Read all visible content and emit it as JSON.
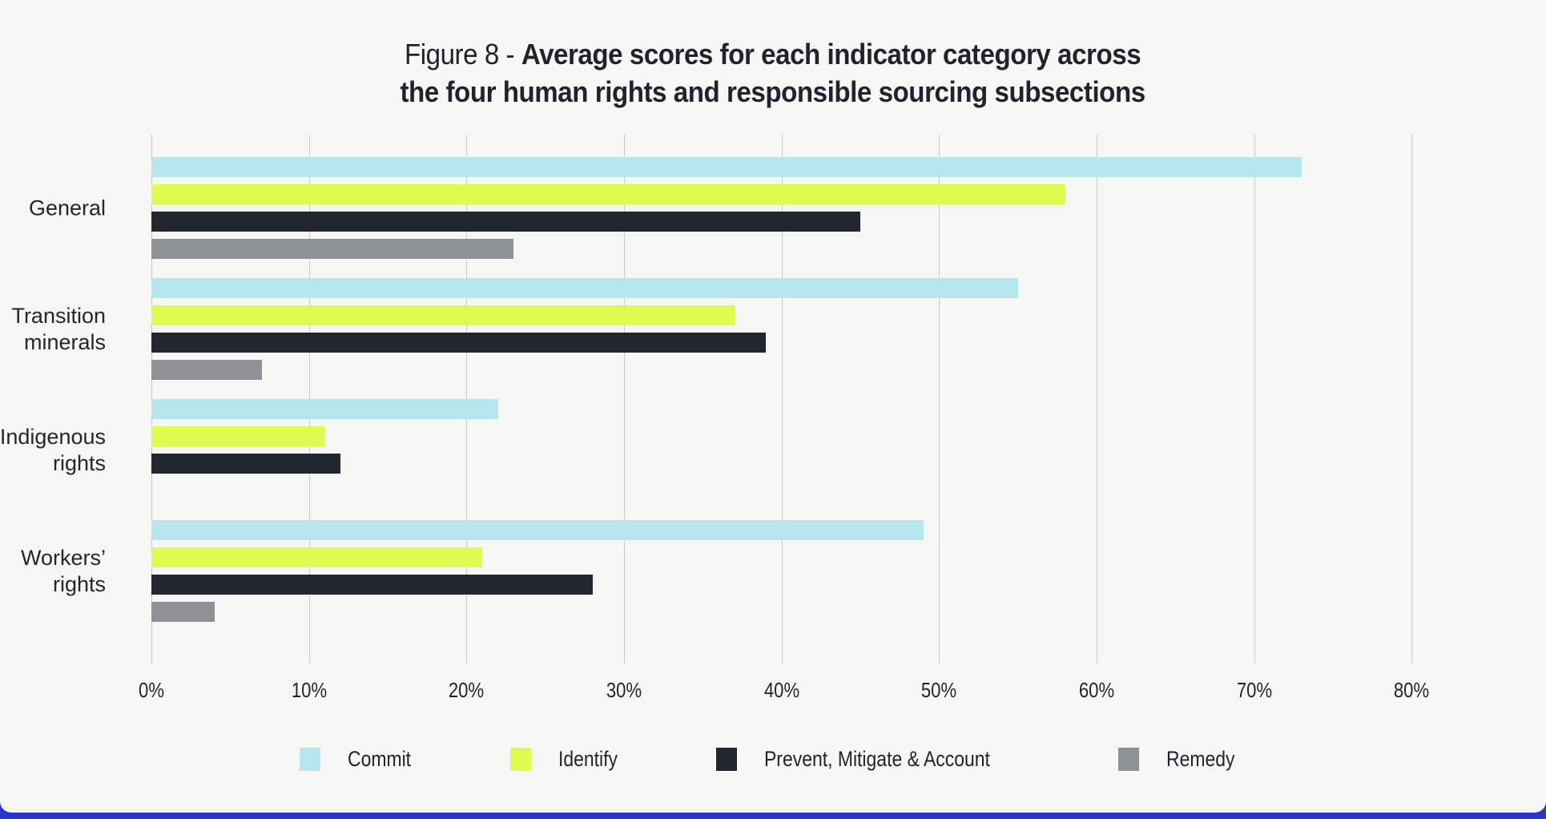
{
  "title": {
    "prefix": "Figure 8 - ",
    "bold_line1": "Average scores for each indicator category across",
    "bold_line2": "the four human rights and responsible sourcing subsections"
  },
  "colors": {
    "background": "#f6f6f5",
    "commit": "#b8e6ef",
    "identify": "#defb50",
    "prevent": "#21262f",
    "remedy": "#8e9296",
    "gridline": "#c9c9c9",
    "text": "#1f242c",
    "bottom_strip": "#2a35c8"
  },
  "chart_data": {
    "type": "bar",
    "orientation": "horizontal",
    "title": "Figure 8 - Average scores for each indicator category across the four human rights and responsible sourcing subsections",
    "categories": [
      "General",
      "Transition minerals",
      "Indigenous rights",
      "Workers’ rights"
    ],
    "category_label_lines": [
      [
        "General"
      ],
      [
        "Transition",
        "minerals"
      ],
      [
        "Indigenous",
        "rights"
      ],
      [
        "Workers’",
        "rights"
      ]
    ],
    "series": [
      {
        "name": "Commit",
        "color": "#b8e6ef",
        "values": [
          73,
          55,
          22,
          49
        ]
      },
      {
        "name": "Identify",
        "color": "#defb50",
        "values": [
          58,
          37,
          11,
          21
        ]
      },
      {
        "name": "Prevent, Mitigate & Account",
        "color": "#21262f",
        "values": [
          45,
          39,
          12,
          28
        ]
      },
      {
        "name": "Remedy",
        "color": "#8e9296",
        "values": [
          23,
          7,
          0,
          4
        ]
      }
    ],
    "x_ticks": [
      {
        "label": "0%",
        "value": 0
      },
      {
        "label": "10%",
        "value": 10
      },
      {
        "label": "20%",
        "value": 20
      },
      {
        "label": "30%",
        "value": 30
      },
      {
        "label": "40%",
        "value": 40
      },
      {
        "label": "50%",
        "value": 50
      },
      {
        "label": "60%",
        "value": 60
      },
      {
        "label": "70%",
        "value": 70
      },
      {
        "label": "80%",
        "value": 80
      }
    ],
    "xlim": [
      0,
      87
    ],
    "grid": true,
    "legend_position": "bottom",
    "unit": "%"
  }
}
